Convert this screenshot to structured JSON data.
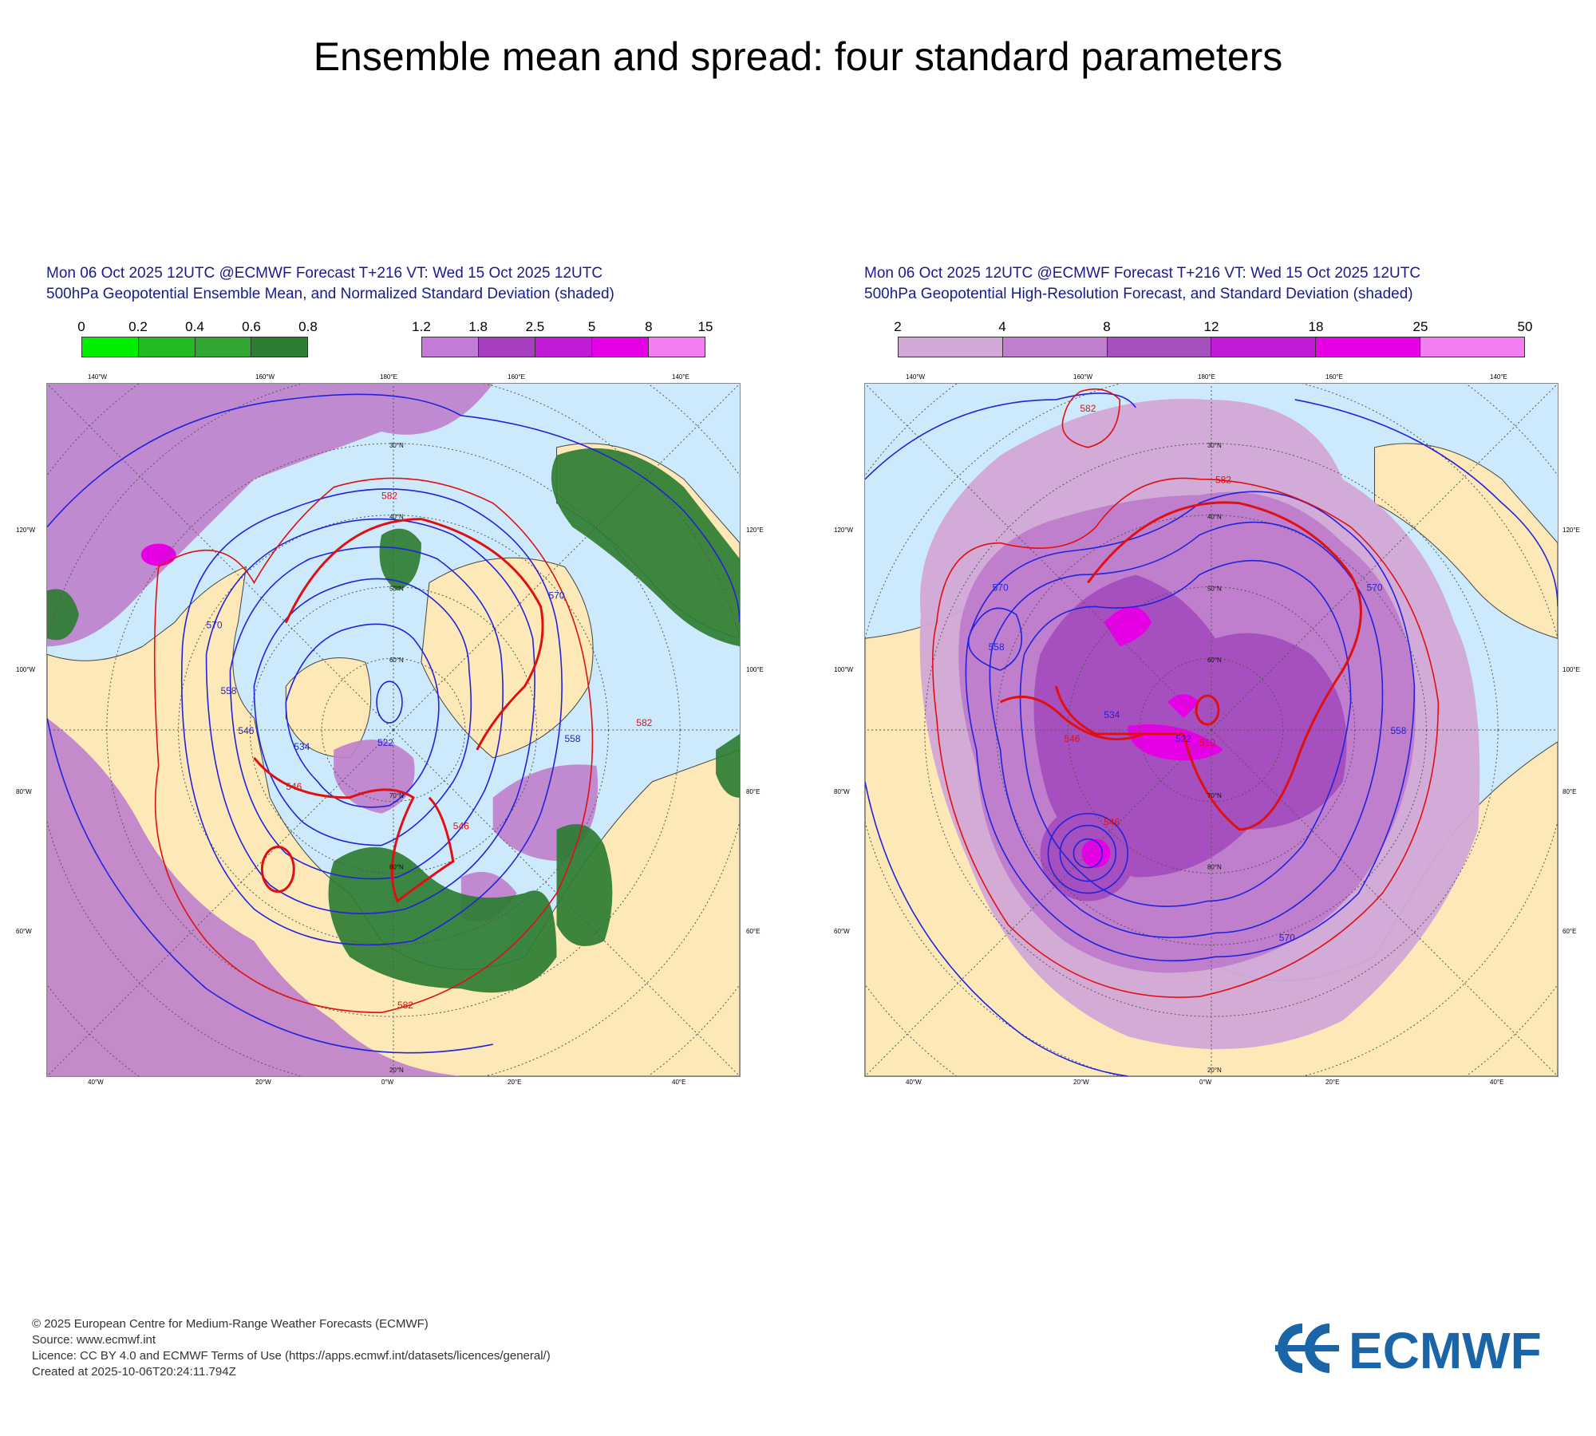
{
  "title": "Ensemble mean and spread: four standard parameters",
  "panels": [
    {
      "header_line1": "Mon 06 Oct 2025 12UTC @ECMWF Forecast T+216 VT: Wed 15 Oct 2025 12UTC",
      "header_line2": "500hPa Geopotential Ensemble Mean, and Normalized Standard Deviation (shaded)",
      "colorbar_green": {
        "labels": [
          "0",
          "0.2",
          "0.4",
          "0.6",
          "0.8"
        ],
        "colors": [
          "#00ee00",
          "#22bb22",
          "#33a533",
          "#2e7d32"
        ]
      },
      "colorbar_purple": {
        "labels": [
          "1.2",
          "1.8",
          "2.5",
          "5",
          "8",
          "15"
        ],
        "colors": [
          "#c27bd6",
          "#a83fc0",
          "#c21ad6",
          "#e600e6",
          "#f27ef2"
        ]
      },
      "lon_labels_top": [
        "140°W",
        "160°W",
        "180°E",
        "160°E",
        "140°E"
      ],
      "lon_labels_bottom": [
        "40°W",
        "20°W",
        "0°W",
        "20°E",
        "40°E"
      ],
      "lon_labels_left": [
        "120°W",
        "100°W",
        "80°W",
        "60°W"
      ],
      "lon_labels_right": [
        "120°E",
        "100°E",
        "80°E",
        "60°E"
      ],
      "lat_labels": [
        "30°N",
        "40°N",
        "50°N",
        "60°N",
        "70°N",
        "80°N",
        "20°N"
      ],
      "contour_labels_blue": [
        "570",
        "558",
        "546",
        "534",
        "522",
        "570",
        "558"
      ],
      "contour_labels_red": [
        "582",
        "582",
        "582",
        "546",
        "546"
      ]
    },
    {
      "header_line1": "Mon 06 Oct 2025 12UTC @ECMWF Forecast T+216 VT: Wed 15 Oct 2025 12UTC",
      "header_line2": "500hPa Geopotential High-Resolution Forecast, and Standard Deviation (shaded)",
      "colorbar": {
        "labels": [
          "2",
          "4",
          "8",
          "12",
          "18",
          "25",
          "50"
        ],
        "colors": [
          "#d2a8d6",
          "#bf7fcc",
          "#a64fbf",
          "#c21ad6",
          "#e600e6",
          "#f27ef2"
        ]
      },
      "lon_labels_top": [
        "140°W",
        "160°W",
        "180°E",
        "160°E",
        "140°E"
      ],
      "lon_labels_bottom": [
        "40°W",
        "20°W",
        "0°W",
        "20°E",
        "40°E"
      ],
      "lon_labels_left": [
        "120°W",
        "100°W",
        "80°W",
        "60°W"
      ],
      "lon_labels_right": [
        "120°E",
        "100°E",
        "80°E",
        "60°E"
      ],
      "lat_labels": [
        "30°N",
        "40°N",
        "50°N",
        "60°N",
        "70°N",
        "80°N",
        "20°N"
      ],
      "contour_labels_blue": [
        "570",
        "558",
        "534",
        "522",
        "570",
        "558",
        "570"
      ],
      "contour_labels_red": [
        "582",
        "582",
        "546",
        "546",
        "510"
      ]
    }
  ],
  "footer": {
    "copyright": "© 2025 European Centre for Medium-Range Weather Forecasts (ECMWF)",
    "source": "Source: www.ecmwf.int",
    "licence": "Licence: CC BY 4.0 and ECMWF Terms of Use (https://apps.ecmwf.int/datasets/licences/general/)",
    "created": "Created at 2025-10-06T20:24:11.794Z"
  },
  "logo_text": "ECMWF",
  "colors": {
    "ocean": "#cdeafc",
    "land": "#fde9b8",
    "contour_blue": "#2222dd",
    "contour_red": "#e01010",
    "header_text": "#1a1a8c",
    "logo": "#1a64a8"
  }
}
